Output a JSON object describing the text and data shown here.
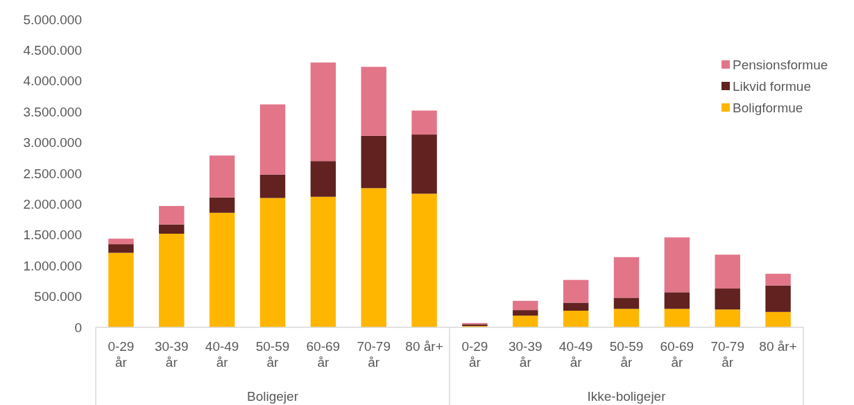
{
  "chart_data": {
    "type": "bar",
    "stacked": true,
    "categories": [
      "0-29 år",
      "30-39 år",
      "40-49 år",
      "50-59 år",
      "60-69 år",
      "70-79 år",
      "80 år+",
      "0-29 år",
      "30-39 år",
      "40-49 år",
      "50-59 år",
      "60-69 år",
      "70-79 år",
      "80 år+"
    ],
    "annotations": [
      "Boligejer",
      "Ikke-boligejer"
    ],
    "series": [
      {
        "name": "Boligformue",
        "color": "#ffb600",
        "values": [
          1210000,
          1520000,
          1860000,
          2100000,
          2120000,
          2260000,
          2170000,
          20000,
          190000,
          270000,
          300000,
          300000,
          290000,
          250000
        ]
      },
      {
        "name": "Likvid formue",
        "color": "#612220",
        "values": [
          140000,
          150000,
          250000,
          380000,
          580000,
          850000,
          960000,
          30000,
          90000,
          130000,
          180000,
          270000,
          340000,
          430000
        ]
      },
      {
        "name": "Pensionsformue",
        "color": "#e27588",
        "values": [
          90000,
          300000,
          680000,
          1140000,
          1600000,
          1120000,
          390000,
          20000,
          150000,
          370000,
          660000,
          890000,
          550000,
          190000
        ]
      }
    ],
    "ylim": [
      0,
      5000000
    ],
    "yticks": [
      0,
      {
        "value": 500000,
        "label": "500.000"
      },
      {
        "value": 1000000,
        "label": "1.000.000"
      },
      {
        "value": 1500000,
        "label": "1.500.000"
      },
      {
        "value": 2000000,
        "label": "2.000.000"
      },
      {
        "value": 2500000,
        "label": "2.500.000"
      },
      {
        "value": 3000000,
        "label": "3.000.000"
      },
      {
        "value": 3500000,
        "label": "3.500.000"
      },
      {
        "value": 4000000,
        "label": "4.000.000"
      },
      {
        "value": 4500000,
        "label": "4.500.000"
      },
      {
        "value": 5000000,
        "label": "5.000.000"
      }
    ],
    "grid": false,
    "legend": "top right"
  }
}
